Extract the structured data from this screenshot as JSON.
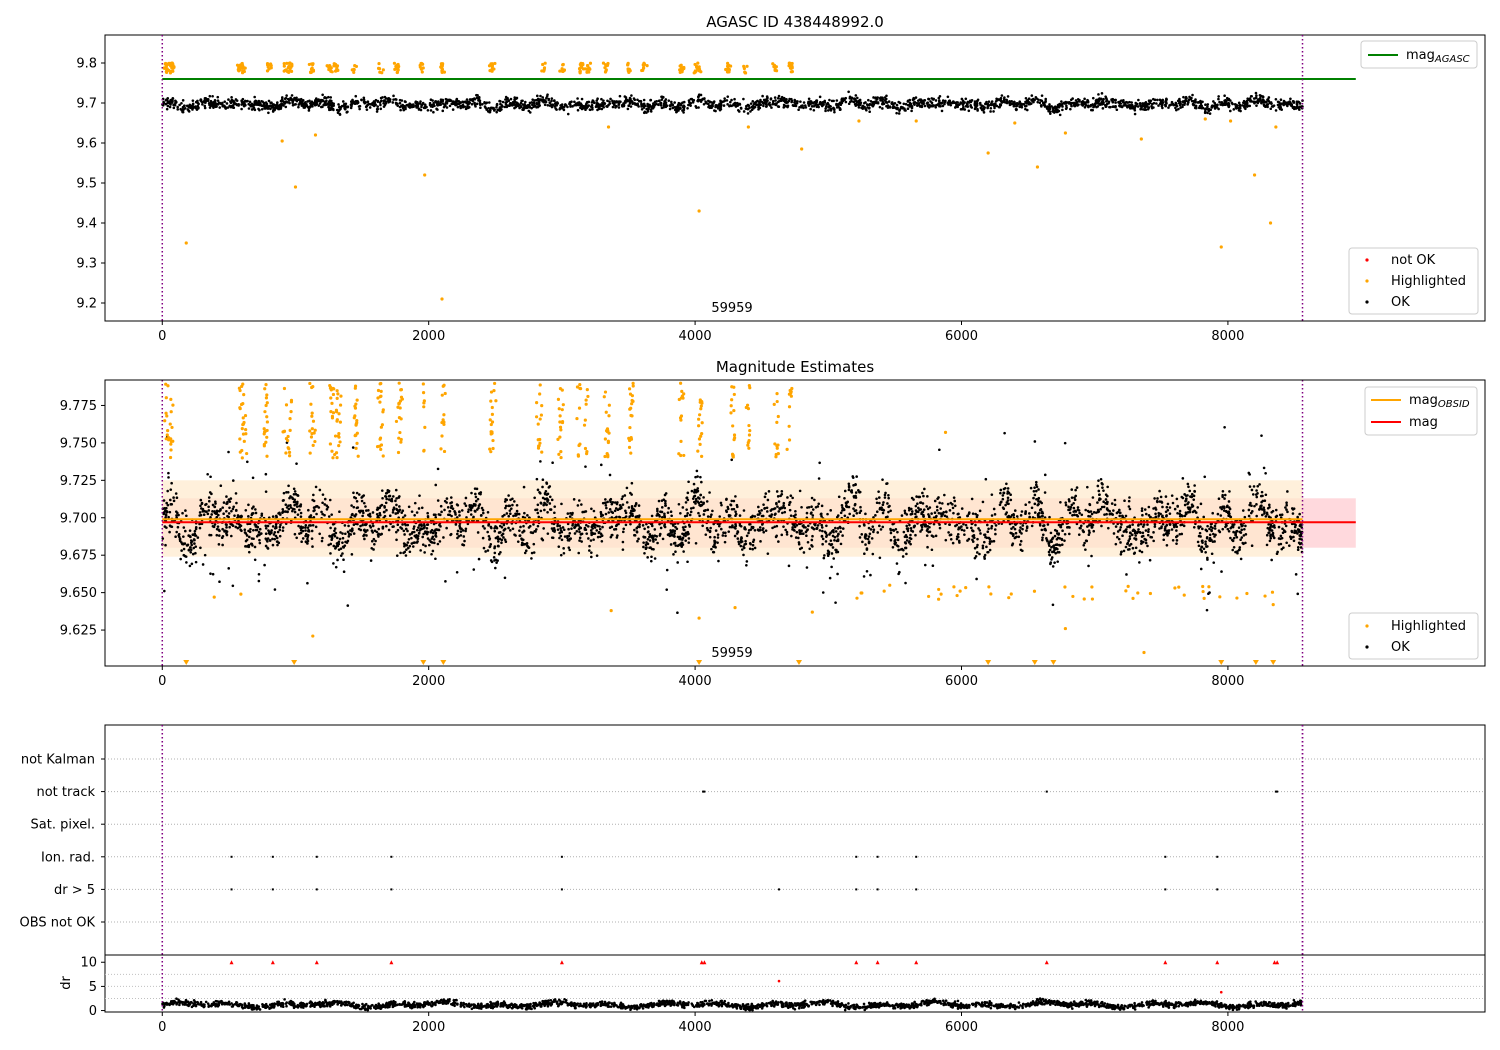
{
  "chart_data": [
    {
      "type": "scatter",
      "title": "AGASC ID 438448992.0",
      "annotation": "59959",
      "xlim": [
        -430,
        9930
      ],
      "ylim": [
        9.155,
        9.87
      ],
      "xticks": [
        0,
        2000,
        4000,
        6000,
        8000
      ],
      "yticks": [
        9.2,
        9.3,
        9.4,
        9.5,
        9.6,
        9.7,
        9.8
      ],
      "vlines": [
        0,
        8560
      ],
      "hline": {
        "y": 9.76,
        "x": [
          0,
          8960
        ],
        "color": "#008000"
      },
      "legend_lines": [
        {
          "label": "mag",
          "sub": "AGASC",
          "color": "#008000"
        }
      ],
      "legend_points": [
        {
          "label": "not OK",
          "color": "#ff0000"
        },
        {
          "label": "Highlighted",
          "color": "#ffa500"
        },
        {
          "label": "OK",
          "color": "#000000"
        }
      ],
      "ok_series": {
        "color": "#000000",
        "x_range": [
          0,
          8560
        ],
        "center": 9.697,
        "spread": 0.014
      },
      "highlighted": {
        "color": "#ffa500",
        "x": [
          180,
          1000,
          1970,
          2100,
          4030,
          6200,
          6570,
          7950,
          8200,
          8320,
          3350,
          4800,
          7350,
          6780,
          5230,
          5660,
          6400,
          7830,
          8020,
          8360,
          1150,
          900,
          4400
        ],
        "y": [
          9.35,
          9.49,
          9.52,
          9.21,
          9.43,
          9.575,
          9.54,
          9.34,
          9.52,
          9.4,
          9.64,
          9.585,
          9.61,
          9.625,
          9.655,
          9.655,
          9.65,
          9.66,
          9.655,
          9.64,
          9.62,
          9.605,
          9.64
        ]
      }
    },
    {
      "type": "scatter",
      "title": "Magnitude Estimates",
      "annotation": "59959",
      "xlim": [
        -430,
        9930
      ],
      "ylim": [
        9.601,
        9.792
      ],
      "xticks": [
        0,
        2000,
        4000,
        6000,
        8000
      ],
      "yticks": [
        9.625,
        9.65,
        9.675,
        9.7,
        9.725,
        9.75,
        9.775
      ],
      "vlines": [
        0,
        8560
      ],
      "mag_line": {
        "y": 9.697,
        "x": [
          0,
          8960
        ],
        "color": "#ff0000"
      },
      "mag_band": {
        "y": [
          9.68,
          9.713
        ],
        "color": "#ffd9dd"
      },
      "obsid_line": {
        "y": 9.699,
        "x": [
          0,
          8560
        ],
        "color": "#ffa500"
      },
      "obsid_band": {
        "y": [
          9.674,
          9.725
        ],
        "color": "#ffe9cc"
      },
      "legend_lines": [
        {
          "label": "mag",
          "sub": "OBSID",
          "color": "#ffa500"
        },
        {
          "label": "mag",
          "sub": "",
          "color": "#ff0000"
        }
      ],
      "legend_points": [
        {
          "label": "Highlighted",
          "color": "#ffa500"
        },
        {
          "label": "OK",
          "color": "#000000"
        }
      ],
      "ok_series": {
        "color": "#000000",
        "x_range": [
          0,
          8560
        ],
        "center": 9.697,
        "spread": 0.014
      },
      "down_markers": {
        "color": "#ffa500",
        "x": [
          180,
          990,
          1960,
          2110,
          4030,
          4780,
          6200,
          6550,
          6690,
          7950,
          8210,
          8340
        ]
      },
      "highlighted": {
        "color": "#ffa500",
        "x": [
          1130,
          3370,
          4030,
          4300,
          4880,
          7370,
          6780,
          590,
          390,
          8340,
          5880
        ],
        "y": [
          9.621,
          9.638,
          9.633,
          9.64,
          9.637,
          9.61,
          9.626,
          9.649,
          9.647,
          9.642,
          9.757
        ]
      }
    },
    {
      "type": "scatter",
      "title": "",
      "xlim": [
        -430,
        9930
      ],
      "xticks": [
        0,
        2000,
        4000,
        6000,
        8000
      ],
      "vlines": [
        0,
        8560
      ],
      "flag_rows": [
        "not Kalman",
        "not track",
        "Sat. pixel.",
        "Ion. rad.",
        "dr > 5",
        "OBS not OK"
      ],
      "flags": {
        "not track": [
          4060,
          4070,
          6640,
          8360,
          8370
        ],
        "Ion. rad.": [
          520,
          830,
          1160,
          1720,
          3000,
          5210,
          5370,
          5660,
          7530,
          7920
        ],
        "dr > 5": [
          520,
          830,
          1160,
          1720,
          3000,
          4630,
          5210,
          5370,
          5660,
          7530,
          7920
        ]
      }
    },
    {
      "type": "scatter",
      "title": "",
      "ylabel": "dr",
      "xlim": [
        -430,
        9930
      ],
      "ylim": [
        -0.3,
        11.5
      ],
      "xticks": [
        0,
        2000,
        4000,
        6000,
        8000
      ],
      "yticks": [
        0,
        5,
        10
      ],
      "vlines": [
        0,
        8560
      ],
      "dr_series": {
        "color": "#000000",
        "x_range": [
          0,
          8560
        ],
        "center": 1.2,
        "spread": 0.6
      },
      "capped": {
        "color": "#ff0000",
        "x": [
          520,
          830,
          1160,
          1720,
          3000,
          4050,
          4070,
          5210,
          5370,
          5660,
          6640,
          7530,
          7920,
          8350,
          8370
        ],
        "y": 10
      },
      "outliers": {
        "color": "#ff0000",
        "x": [
          4630,
          7950
        ],
        "y": [
          6.1,
          3.8
        ]
      }
    }
  ]
}
